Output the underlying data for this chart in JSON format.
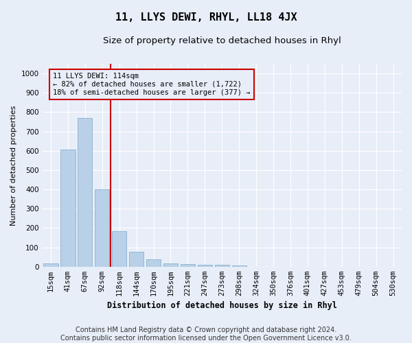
{
  "title": "11, LLYS DEWI, RHYL, LL18 4JX",
  "subtitle": "Size of property relative to detached houses in Rhyl",
  "xlabel": "Distribution of detached houses by size in Rhyl",
  "ylabel": "Number of detached properties",
  "bar_labels": [
    "15sqm",
    "41sqm",
    "67sqm",
    "92sqm",
    "118sqm",
    "144sqm",
    "170sqm",
    "195sqm",
    "221sqm",
    "247sqm",
    "273sqm",
    "298sqm",
    "324sqm",
    "350sqm",
    "376sqm",
    "401sqm",
    "427sqm",
    "453sqm",
    "479sqm",
    "504sqm",
    "530sqm"
  ],
  "bar_values": [
    15,
    605,
    770,
    400,
    185,
    77,
    37,
    18,
    12,
    10,
    9,
    5,
    0,
    0,
    0,
    0,
    0,
    0,
    0,
    0,
    0
  ],
  "bar_color": "#b8d0e8",
  "bar_edge_color": "#8ab0cc",
  "vline_color": "#cc0000",
  "annotation_title": "11 LLYS DEWI: 114sqm",
  "annotation_line1": "← 82% of detached houses are smaller (1,722)",
  "annotation_line2": "18% of semi-detached houses are larger (377) →",
  "annotation_box_color": "#cc0000",
  "background_color": "#e8eef8",
  "grid_color": "#ffffff",
  "ylim": [
    0,
    1050
  ],
  "yticks": [
    0,
    100,
    200,
    300,
    400,
    500,
    600,
    700,
    800,
    900,
    1000
  ],
  "footer": "Contains HM Land Registry data © Crown copyright and database right 2024.\nContains public sector information licensed under the Open Government Licence v3.0.",
  "title_fontsize": 11,
  "subtitle_fontsize": 9.5,
  "xlabel_fontsize": 8.5,
  "ylabel_fontsize": 8,
  "tick_fontsize": 7.5,
  "footer_fontsize": 7,
  "ann_fontsize": 7.5
}
